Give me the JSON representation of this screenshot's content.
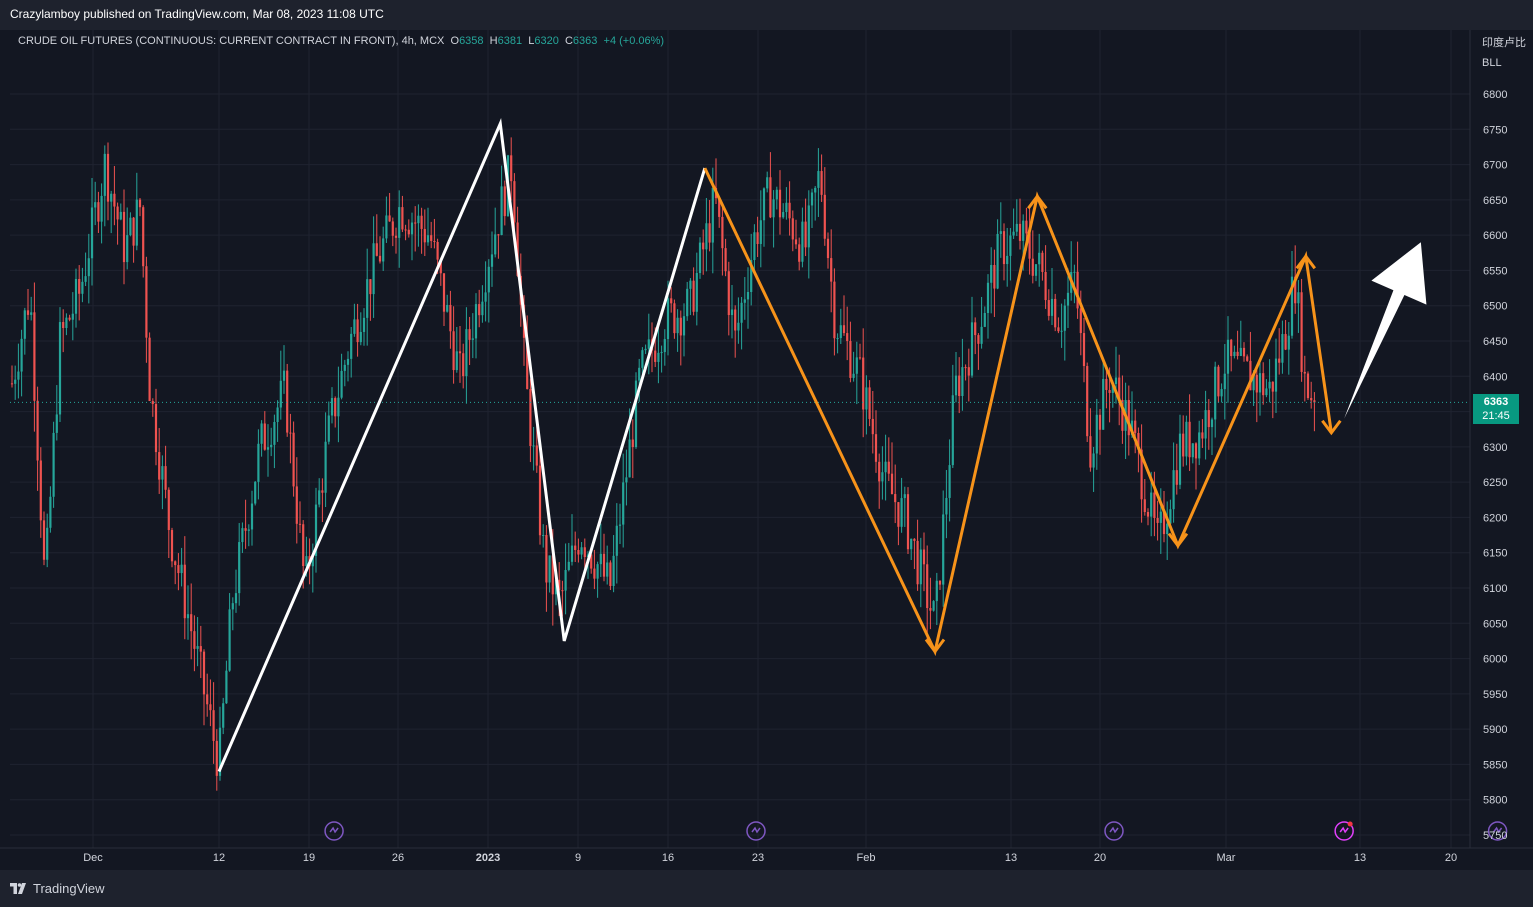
{
  "header": {
    "publisher": "Crazylamboy published on TradingView.com, Mar 08, 2023 11:08 UTC"
  },
  "legend": {
    "symbol": "CRUDE OIL FUTURES (CONTINUOUS: CURRENT CONTRACT IN FRONT), 4h, MCX",
    "open_label": "O",
    "open": "6358",
    "high_label": "H",
    "high": "6381",
    "low_label": "L",
    "low": "6320",
    "close_label": "C",
    "close": "6363",
    "change": "+4 (+0.06%)"
  },
  "scale_title": {
    "line1": "印度卢比",
    "line2": "BLL"
  },
  "price_tag": {
    "price": "6363",
    "countdown": "21:45"
  },
  "footer": {
    "brand": "TradingView"
  },
  "colors": {
    "background": "#131722",
    "up": "#26a69a",
    "down": "#ef5350",
    "white_pattern": "#ffffff",
    "orange_pattern": "#f7931a",
    "event_icon": "#7e57c2"
  },
  "chart_data": {
    "type": "candlestick",
    "timeframe": "4h",
    "ylim": [
      5730,
      6860
    ],
    "yticks": [
      5750,
      5800,
      5850,
      5900,
      5950,
      6000,
      6050,
      6100,
      6150,
      6200,
      6250,
      6300,
      6350,
      6400,
      6450,
      6500,
      6550,
      6600,
      6650,
      6700,
      6750,
      6800
    ],
    "xticks": [
      "Dec",
      "12",
      "19",
      "26",
      "2023",
      "9",
      "16",
      "23",
      "Feb",
      "13",
      "20",
      "Mar",
      "13",
      "20"
    ],
    "last_price": 6363,
    "white_zigzag": [
      {
        "date": "Dec 12",
        "price": 5840
      },
      {
        "date": "Jan 3",
        "price": 6758
      },
      {
        "date": "Jan 8",
        "price": 6025
      },
      {
        "date": "Jan 19",
        "price": 6695
      }
    ],
    "orange_zigzag": [
      {
        "date": "Jan 19",
        "price": 6695
      },
      {
        "date": "Feb 6",
        "price": 6010
      },
      {
        "date": "Feb 14",
        "price": 6655
      },
      {
        "date": "Feb 25",
        "price": 6160
      },
      {
        "date": "Mar 7",
        "price": 6570
      },
      {
        "date": "Mar 9",
        "price": 6320
      }
    ],
    "projection_arrow": {
      "from": {
        "date": "Mar 10",
        "price": 6340
      },
      "to": {
        "date": "Mar 16",
        "price": 6590
      }
    },
    "events": [
      "Dec 21",
      "Jan 23",
      "Feb 20",
      "Mar 10",
      "Mar 22"
    ]
  }
}
